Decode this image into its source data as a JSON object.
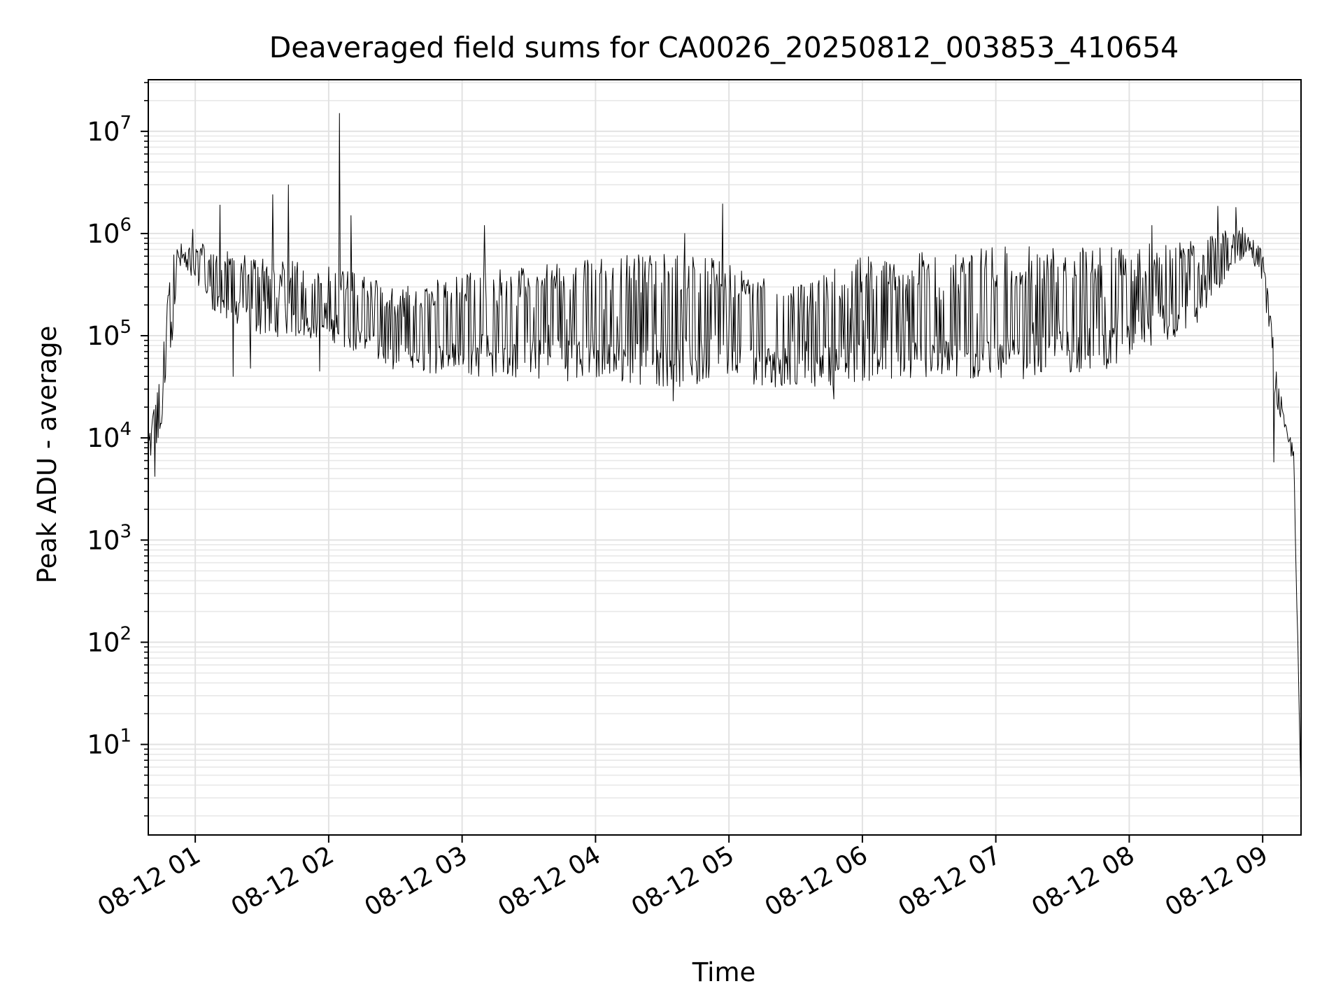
{
  "chart_data": {
    "type": "line",
    "title": "Deaveraged field sums for CA0026_20250812_003853_410654",
    "xlabel": "Time",
    "ylabel": "Peak ADU - average",
    "x_axis": {
      "type": "time",
      "range": [
        "2025-08-12 00:38:53",
        "2025-08-12 09:17:15"
      ],
      "ticks": [
        {
          "t": "2025-08-12 01:00",
          "label": "08-12 01"
        },
        {
          "t": "2025-08-12 02:00",
          "label": "08-12 02"
        },
        {
          "t": "2025-08-12 03:00",
          "label": "08-12 03"
        },
        {
          "t": "2025-08-12 04:00",
          "label": "08-12 04"
        },
        {
          "t": "2025-08-12 05:00",
          "label": "08-12 05"
        },
        {
          "t": "2025-08-12 06:00",
          "label": "08-12 06"
        },
        {
          "t": "2025-08-12 07:00",
          "label": "08-12 07"
        },
        {
          "t": "2025-08-12 08:00",
          "label": "08-12 08"
        },
        {
          "t": "2025-08-12 09:00",
          "label": "08-12 09"
        }
      ]
    },
    "y_axis": {
      "scale": "log",
      "range": [
        1.3,
        32000000
      ],
      "ticks": [
        {
          "value": 10,
          "base": "10",
          "exp": "1"
        },
        {
          "value": 100,
          "base": "10",
          "exp": "2"
        },
        {
          "value": 1000,
          "base": "10",
          "exp": "3"
        },
        {
          "value": 10000,
          "base": "10",
          "exp": "4"
        },
        {
          "value": 100000,
          "base": "10",
          "exp": "5"
        },
        {
          "value": 1000000,
          "base": "10",
          "exp": "6"
        },
        {
          "value": 10000000,
          "base": "10",
          "exp": "7"
        }
      ]
    },
    "grid": true,
    "line_color": "#000000",
    "envelope": [
      {
        "t": "2025-08-12 00:38:53",
        "low": 4500,
        "high": 12000
      },
      {
        "t": "2025-08-12 00:41:00",
        "low": 5000,
        "high": 18000
      },
      {
        "t": "2025-08-12 00:45:00",
        "low": 12000,
        "high": 60000
      },
      {
        "t": "2025-08-12 00:49:00",
        "low": 60000,
        "high": 500000
      },
      {
        "t": "2025-08-12 00:52:00",
        "low": 400000,
        "high": 800000
      },
      {
        "t": "2025-08-12 01:00:00",
        "low": 350000,
        "high": 900000
      },
      {
        "t": "2025-08-12 01:10:00",
        "low": 150000,
        "high": 700000
      },
      {
        "t": "2025-08-12 01:30:00",
        "low": 100000,
        "high": 600000
      },
      {
        "t": "2025-08-12 02:00:00",
        "low": 90000,
        "high": 500000
      },
      {
        "t": "2025-08-12 02:30:00",
        "low": 45000,
        "high": 300000
      },
      {
        "t": "2025-08-12 03:00:00",
        "low": 40000,
        "high": 400000
      },
      {
        "t": "2025-08-12 04:00:00",
        "low": 35000,
        "high": 600000
      },
      {
        "t": "2025-08-12 04:45:00",
        "low": 30000,
        "high": 650000
      },
      {
        "t": "2025-08-12 05:00:00",
        "low": 35000,
        "high": 500000
      },
      {
        "t": "2025-08-12 05:30:00",
        "low": 30000,
        "high": 300000
      },
      {
        "t": "2025-08-12 06:00:00",
        "low": 35000,
        "high": 600000
      },
      {
        "t": "2025-08-12 07:00:00",
        "low": 35000,
        "high": 750000
      },
      {
        "t": "2025-08-12 08:00:00",
        "low": 50000,
        "high": 750000
      },
      {
        "t": "2025-08-12 08:30:00",
        "low": 120000,
        "high": 900000
      },
      {
        "t": "2025-08-12 08:52:00",
        "low": 600000,
        "high": 1200000
      },
      {
        "t": "2025-08-12 09:00:00",
        "low": 350000,
        "high": 700000
      },
      {
        "t": "2025-08-12 09:06:00",
        "low": 20000,
        "high": 60000
      },
      {
        "t": "2025-08-12 09:10:00",
        "low": 10000,
        "high": 14000
      },
      {
        "t": "2025-08-12 09:14:00",
        "low": 5000,
        "high": 9000
      },
      {
        "t": "2025-08-12 09:17:15",
        "low": 3,
        "high": 3
      }
    ],
    "spikes": [
      {
        "t": "2025-08-12 00:59:00",
        "value": 1100000
      },
      {
        "t": "2025-08-12 01:11:00",
        "value": 1900000
      },
      {
        "t": "2025-08-12 01:35:00",
        "value": 2400000
      },
      {
        "t": "2025-08-12 01:42:00",
        "value": 3000000
      },
      {
        "t": "2025-08-12 02:05:00",
        "value": 15000000
      },
      {
        "t": "2025-08-12 02:10:00",
        "value": 1500000
      },
      {
        "t": "2025-08-12 03:10:00",
        "value": 1200000
      },
      {
        "t": "2025-08-12 04:40:00",
        "value": 1000000
      },
      {
        "t": "2025-08-12 04:57:00",
        "value": 1950000
      },
      {
        "t": "2025-08-12 08:10:00",
        "value": 1200000
      },
      {
        "t": "2025-08-12 08:40:00",
        "value": 1850000
      },
      {
        "t": "2025-08-12 08:48:00",
        "value": 1800000
      }
    ],
    "dips": [
      {
        "t": "2025-08-12 00:42:00",
        "value": 4200
      },
      {
        "t": "2025-08-12 01:17:00",
        "value": 40000
      },
      {
        "t": "2025-08-12 01:25:00",
        "value": 48000
      },
      {
        "t": "2025-08-12 01:56:00",
        "value": 45000
      },
      {
        "t": "2025-08-12 04:35:00",
        "value": 23000
      },
      {
        "t": "2025-08-12 05:47:00",
        "value": 24000
      },
      {
        "t": "2025-08-12 09:05:00",
        "value": 5800
      }
    ]
  }
}
